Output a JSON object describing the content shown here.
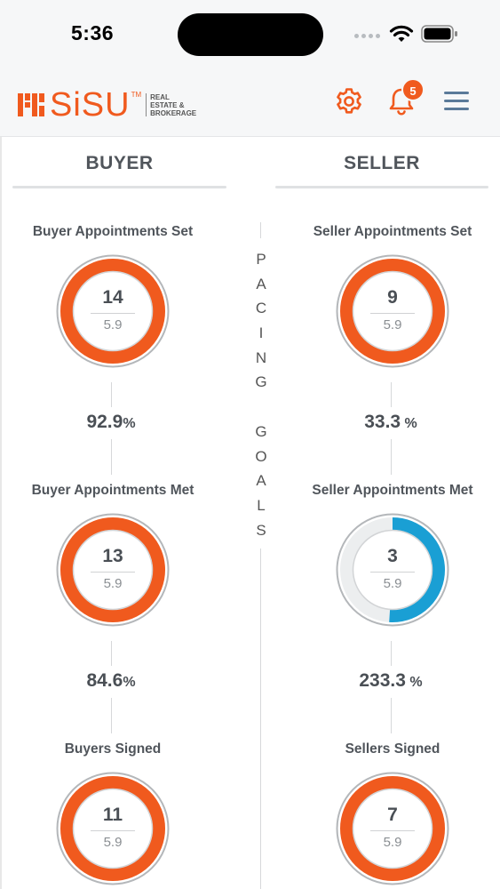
{
  "status_bar": {
    "time": "5:36"
  },
  "header": {
    "logo_word": "SiSU",
    "logo_tm": "TM",
    "logo_tagline": "REAL ESTATE & BROKERAGE",
    "notification_count": "5",
    "accent_color": "#f05a1e",
    "icons": [
      "gear-icon",
      "bell-icon",
      "hamburger-menu-icon"
    ]
  },
  "tabs": {
    "buyer": "BUYER",
    "seller": "SELLER"
  },
  "pacing_label": [
    "P",
    "A",
    "C",
    "I",
    "N",
    "G",
    "",
    "G",
    "O",
    "A",
    "L",
    "S"
  ],
  "buyer": [
    {
      "title": "Buyer Appointments Set",
      "value": "14",
      "goal": "5.9",
      "progress": 1.0,
      "ring_color": "#f05a1e",
      "pct": "92.9",
      "pct_sym": "%"
    },
    {
      "title": "Buyer Appointments Met",
      "value": "13",
      "goal": "5.9",
      "progress": 1.0,
      "ring_color": "#f05a1e",
      "pct": "84.6",
      "pct_sym": "%"
    },
    {
      "title": "Buyers Signed",
      "value": "11",
      "goal": "5.9",
      "progress": 1.0,
      "ring_color": "#f05a1e"
    }
  ],
  "seller": [
    {
      "title": "Seller Appointments Set",
      "value": "9",
      "goal": "5.9",
      "progress": 1.0,
      "ring_color": "#f05a1e",
      "pct": "33.3",
      "pct_sym": "%"
    },
    {
      "title": "Seller Appointments Met",
      "value": "3",
      "goal": "5.9",
      "progress": 0.51,
      "ring_color": "#1a9fd4",
      "pct": "233.3",
      "pct_sym": "%"
    },
    {
      "title": "Sellers Signed",
      "value": "7",
      "goal": "5.9",
      "progress": 1.0,
      "ring_color": "#f05a1e"
    }
  ]
}
